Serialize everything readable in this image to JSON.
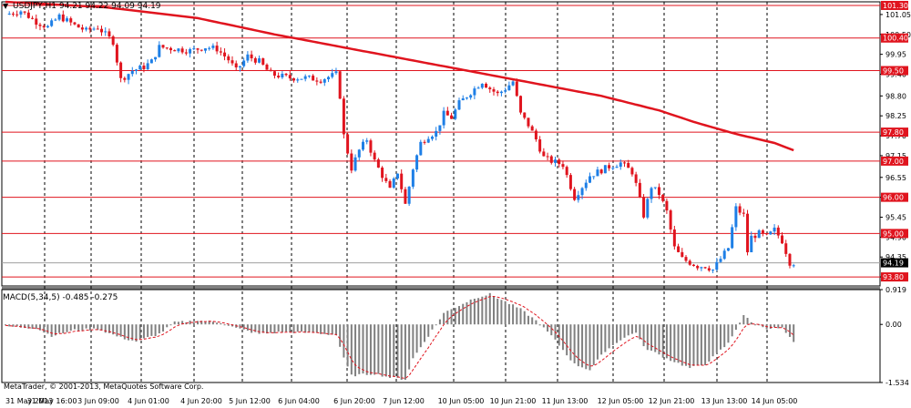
{
  "window": {
    "symbol": "USDJPY,H1",
    "ohlc": "94.21 94.22 94.09 94.19",
    "indicator_label": "MACD(5,34,5)",
    "indicator_values": "-0.485 -0.275",
    "copyright": "MetaTrader, © 2001-2013, MetaQuotes Software Corp."
  },
  "colors": {
    "bull": "#1e7fe6",
    "bear": "#e0141e",
    "moving_average": "#e0141e",
    "level_line": "#e0141e",
    "grid": "#000000",
    "macd_hist": "#808080",
    "macd_signal": "#e0141e",
    "background": "#ffffff"
  },
  "chart_data": [
    {
      "type": "candlestick",
      "title": "USDJPY,H1",
      "x_tick_labels": [
        "31 May 2013",
        "31 May 16:00",
        "3 Jun 09:00",
        "4 Jun 01:00",
        "4 Jun 20:00",
        "5 Jun 12:00",
        "6 Jun 04:00",
        "6 Jun 20:00",
        "7 Jun 12:00",
        "10 Jun 05:00",
        "10 Jun 21:00",
        "11 Jun 13:00",
        "12 Jun 05:00",
        "12 Jun 21:00",
        "13 Jun 13:00",
        "14 Jun 05:00"
      ],
      "y_tick_labels": [
        "101.05",
        "100.50",
        "99.95",
        "99.40",
        "98.80",
        "98.25",
        "97.70",
        "97.15",
        "96.55",
        "96.00",
        "95.45",
        "94.90",
        "94.35",
        "93.80"
      ],
      "ylim": [
        93.55,
        101.4
      ],
      "horizontal_levels": [
        "101.30",
        "100.40",
        "99.50",
        "97.80",
        "97.00",
        "96.00",
        "95.00",
        "93.80"
      ],
      "current_price": "94.19",
      "price_path": [
        [
          0,
          101.05
        ],
        [
          4,
          101.15
        ],
        [
          8,
          100.85
        ],
        [
          11,
          100.7
        ],
        [
          14,
          101.0
        ],
        [
          18,
          100.75
        ],
        [
          21,
          100.6
        ],
        [
          24,
          100.7
        ],
        [
          28,
          100.3
        ],
        [
          30,
          99.25
        ],
        [
          33,
          99.5
        ],
        [
          36,
          99.6
        ],
        [
          38,
          99.75
        ],
        [
          40,
          100.15
        ],
        [
          44,
          100.1
        ],
        [
          48,
          100.05
        ],
        [
          52,
          100.15
        ],
        [
          55,
          100.1
        ],
        [
          58,
          99.8
        ],
        [
          60,
          99.5
        ],
        [
          63,
          99.9
        ],
        [
          66,
          99.75
        ],
        [
          69,
          99.4
        ],
        [
          74,
          99.3
        ],
        [
          78,
          99.3
        ],
        [
          82,
          99.25
        ],
        [
          86,
          99.4
        ],
        [
          87,
          98.8
        ],
        [
          88,
          97.7
        ],
        [
          90,
          96.8
        ],
        [
          92,
          97.3
        ],
        [
          94,
          97.6
        ],
        [
          96,
          97.0
        ],
        [
          98,
          96.6
        ],
        [
          100,
          96.2
        ],
        [
          102,
          96.7
        ],
        [
          104,
          95.8
        ],
        [
          106,
          96.8
        ],
        [
          108,
          97.5
        ],
        [
          110,
          97.7
        ],
        [
          112,
          97.8
        ],
        [
          114,
          98.3
        ],
        [
          116,
          98.2
        ],
        [
          118,
          98.6
        ],
        [
          120,
          98.8
        ],
        [
          122,
          99.0
        ],
        [
          124,
          99.2
        ],
        [
          126,
          99.0
        ],
        [
          128,
          98.85
        ],
        [
          130,
          99.0
        ],
        [
          132,
          99.2
        ],
        [
          134,
          98.3
        ],
        [
          136,
          98.0
        ],
        [
          138,
          97.6
        ],
        [
          140,
          97.1
        ],
        [
          142,
          97.0
        ],
        [
          145,
          96.9
        ],
        [
          148,
          96.0
        ],
        [
          150,
          96.3
        ],
        [
          152,
          96.6
        ],
        [
          154,
          96.7
        ],
        [
          157,
          96.85
        ],
        [
          160,
          96.95
        ],
        [
          163,
          96.7
        ],
        [
          164,
          96.35
        ],
        [
          166,
          95.5
        ],
        [
          168,
          96.3
        ],
        [
          170,
          96.1
        ],
        [
          172,
          95.6
        ],
        [
          174,
          94.6
        ],
        [
          176,
          94.3
        ],
        [
          178,
          94.2
        ],
        [
          180,
          94.1
        ],
        [
          182,
          94.1
        ],
        [
          184,
          94.0
        ],
        [
          186,
          94.3
        ],
        [
          188,
          94.6
        ],
        [
          190,
          95.7
        ],
        [
          192,
          95.5
        ],
        [
          193,
          94.5
        ],
        [
          194,
          94.9
        ],
        [
          196,
          95.0
        ],
        [
          198,
          94.9
        ],
        [
          200,
          95.1
        ],
        [
          202,
          94.8
        ],
        [
          204,
          94.2
        ],
        [
          205,
          94.19
        ]
      ],
      "moving_average": [
        [
          0,
          101.4
        ],
        [
          26,
          101.25
        ],
        [
          50,
          100.95
        ],
        [
          70,
          100.5
        ],
        [
          90,
          100.1
        ],
        [
          105,
          99.8
        ],
        [
          125,
          99.4
        ],
        [
          140,
          99.1
        ],
        [
          155,
          98.8
        ],
        [
          170,
          98.4
        ],
        [
          180,
          98.05
        ],
        [
          190,
          97.75
        ],
        [
          196,
          97.6
        ],
        [
          200,
          97.5
        ],
        [
          205,
          97.3
        ]
      ]
    },
    {
      "type": "bar",
      "title": "MACD(5,34,5)",
      "y_tick_labels": [
        "0.919",
        "0.00",
        "-1.534"
      ],
      "ylim": [
        -1.534,
        0.919
      ],
      "macd_path": [
        [
          0,
          -0.05
        ],
        [
          8,
          -0.1
        ],
        [
          12,
          -0.3
        ],
        [
          18,
          -0.15
        ],
        [
          24,
          -0.12
        ],
        [
          30,
          -0.35
        ],
        [
          34,
          -0.45
        ],
        [
          40,
          -0.25
        ],
        [
          44,
          0.05
        ],
        [
          50,
          0.1
        ],
        [
          56,
          0.05
        ],
        [
          60,
          -0.1
        ],
        [
          66,
          -0.25
        ],
        [
          72,
          -0.2
        ],
        [
          80,
          -0.22
        ],
        [
          86,
          -0.28
        ],
        [
          88,
          -0.9
        ],
        [
          90,
          -1.35
        ],
        [
          96,
          -1.3
        ],
        [
          100,
          -1.4
        ],
        [
          104,
          -1.45
        ],
        [
          106,
          -0.9
        ],
        [
          110,
          -0.3
        ],
        [
          114,
          0.3
        ],
        [
          118,
          0.5
        ],
        [
          122,
          0.7
        ],
        [
          126,
          0.8
        ],
        [
          130,
          0.6
        ],
        [
          134,
          0.4
        ],
        [
          138,
          0.1
        ],
        [
          142,
          -0.3
        ],
        [
          146,
          -0.8
        ],
        [
          148,
          -1.05
        ],
        [
          152,
          -1.2
        ],
        [
          156,
          -0.7
        ],
        [
          160,
          -0.4
        ],
        [
          164,
          -0.2
        ],
        [
          166,
          -0.6
        ],
        [
          172,
          -0.9
        ],
        [
          178,
          -1.15
        ],
        [
          182,
          -1.05
        ],
        [
          188,
          -0.5
        ],
        [
          192,
          0.25
        ],
        [
          194,
          0.05
        ],
        [
          198,
          -0.1
        ],
        [
          202,
          -0.1
        ],
        [
          205,
          -0.485
        ]
      ]
    }
  ]
}
